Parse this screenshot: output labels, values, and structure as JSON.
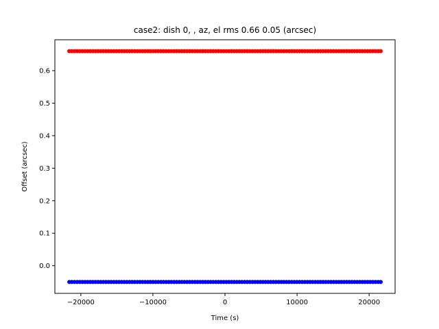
{
  "chart_data": {
    "type": "scatter",
    "title": "case2: dish 0, , az, el rms 0.66 0.05 (arcsec)",
    "xlabel": "Time (s)",
    "ylabel": "Offset (arcsec)",
    "xlim": [
      -23600,
      23600
    ],
    "ylim": [
      -0.085,
      0.695
    ],
    "xticks": [
      -20000,
      -10000,
      0,
      10000,
      20000
    ],
    "xtick_labels": [
      "−20000",
      "−10000",
      "0",
      "10000",
      "20000"
    ],
    "yticks": [
      0.0,
      0.1,
      0.2,
      0.3,
      0.4,
      0.5,
      0.6
    ],
    "ytick_labels": [
      "0.0",
      "0.1",
      "0.2",
      "0.3",
      "0.4",
      "0.5",
      "0.6"
    ],
    "grid": false,
    "legend": "none",
    "series": [
      {
        "color": "#ff0000",
        "x_range": [
          -21600,
          21600
        ],
        "y": 0.66,
        "count": 120
      },
      {
        "color": "#0000ff",
        "x_range": [
          -21600,
          21600
        ],
        "y": -0.05,
        "count": 120
      }
    ]
  }
}
